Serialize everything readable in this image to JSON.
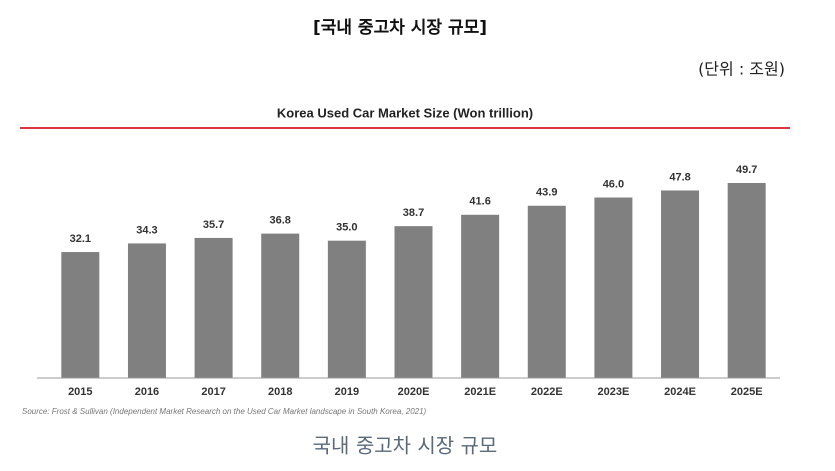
{
  "header": {
    "title": "[국내 중고차 시장 규모]",
    "unit": "(단위 : 조원)"
  },
  "chart_data": {
    "type": "bar",
    "title": "Korea Used Car Market Size (Won trillion)",
    "categories": [
      "2015",
      "2016",
      "2017",
      "2018",
      "2019",
      "2020E",
      "2021E",
      "2022E",
      "2023E",
      "2024E",
      "2025E"
    ],
    "values": [
      32.1,
      34.3,
      35.7,
      36.8,
      35.0,
      38.7,
      41.6,
      43.9,
      46.0,
      47.8,
      49.7
    ],
    "value_labels": [
      "32.1",
      "34.3",
      "35.7",
      "36.8",
      "35.0",
      "38.7",
      "41.6",
      "43.9",
      "46.0",
      "47.8",
      "49.7"
    ],
    "color": "#808080",
    "source": "Source: Frost & Sullivan (Independent Market Research on the Used Car Market landscape in South Korea, 2021)"
  },
  "caption": "국내 중고차 시장 규모"
}
